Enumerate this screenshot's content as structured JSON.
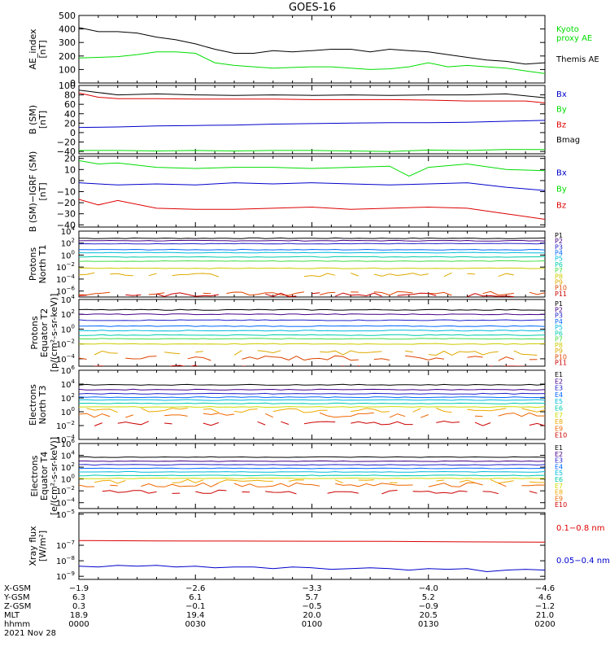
{
  "title": "GOES-16",
  "colors": {
    "black": "#000000",
    "green": "#00dd00",
    "blue": "#0000cc",
    "red": "#dd0000",
    "P": [
      "#000000",
      "#440088",
      "#2222cc",
      "#0066ff",
      "#00bbdd",
      "#00ccaa",
      "#44dd44",
      "#cccc00",
      "#ddaa00",
      "#dd4400",
      "#cc0000"
    ],
    "E": [
      "#000000",
      "#440088",
      "#2222cc",
      "#0066ff",
      "#00bbdd",
      "#00ccaa",
      "#ccdd00",
      "#eeaa00",
      "#ee6600",
      "#cc0000"
    ]
  },
  "chart_data": [
    {
      "type": "line",
      "panel": "ae",
      "ylabel": [
        "AE_index",
        "[nT]"
      ],
      "ylim": [
        0,
        500
      ],
      "yticks": [
        "0",
        "100",
        "200",
        "300",
        "400",
        "500"
      ],
      "series": [
        {
          "name": "Themis AE",
          "color": "black",
          "x": [
            0,
            10,
            20,
            30,
            40,
            50,
            60,
            70,
            80,
            90,
            100,
            110,
            120,
            130,
            140,
            150,
            160,
            170,
            180,
            190,
            200,
            210,
            220,
            230,
            240
          ],
          "y": [
            410,
            380,
            380,
            370,
            340,
            320,
            290,
            250,
            220,
            220,
            240,
            230,
            240,
            250,
            250,
            230,
            250,
            240,
            230,
            210,
            190,
            170,
            160,
            140,
            150
          ]
        },
        {
          "name": "Kyoto proxy AE",
          "color": "green",
          "x": [
            0,
            10,
            20,
            30,
            40,
            50,
            60,
            70,
            80,
            90,
            100,
            110,
            120,
            130,
            140,
            150,
            160,
            170,
            180,
            190,
            200,
            210,
            220,
            230,
            240
          ],
          "y": [
            185,
            190,
            195,
            210,
            230,
            230,
            220,
            150,
            130,
            120,
            110,
            115,
            120,
            120,
            110,
            100,
            105,
            120,
            150,
            120,
            130,
            120,
            110,
            90,
            70
          ]
        }
      ],
      "legend": [
        {
          "text": [
            "Kyoto",
            "proxy AE"
          ],
          "color": "green"
        },
        {
          "text": [
            "Themis AE"
          ],
          "color": "black"
        }
      ]
    },
    {
      "type": "line",
      "panel": "bsm",
      "ylabel": [
        "B (SM)",
        "[nT]"
      ],
      "ylim": [
        -45,
        100
      ],
      "yticks": [
        "−40",
        "−20",
        "0",
        "20",
        "40",
        "60",
        "80",
        "100"
      ],
      "ytick_values": [
        -40,
        -20,
        0,
        20,
        40,
        60,
        80,
        100
      ],
      "series": [
        {
          "name": "Bmag",
          "color": "black",
          "x": [
            0,
            10,
            20,
            40,
            60,
            80,
            100,
            120,
            140,
            160,
            180,
            200,
            220,
            230,
            240
          ],
          "y": [
            90,
            85,
            80,
            82,
            80,
            79,
            80,
            79,
            80,
            79,
            80,
            80,
            82,
            78,
            74
          ]
        },
        {
          "name": "Bz",
          "color": "red",
          "x": [
            0,
            10,
            20,
            40,
            60,
            80,
            100,
            120,
            140,
            160,
            180,
            200,
            220,
            230,
            240
          ],
          "y": [
            84,
            75,
            72,
            72,
            71,
            71,
            71,
            70,
            70,
            70,
            69,
            67,
            67,
            67,
            63
          ]
        },
        {
          "name": "Bx",
          "color": "blue",
          "x": [
            0,
            20,
            40,
            60,
            80,
            100,
            120,
            140,
            160,
            180,
            200,
            220,
            240
          ],
          "y": [
            11,
            12,
            14,
            15,
            16,
            18,
            19,
            20,
            21,
            21,
            22,
            24,
            26
          ]
        },
        {
          "name": "By",
          "color": "green",
          "x": [
            0,
            20,
            40,
            60,
            80,
            100,
            120,
            140,
            160,
            180,
            200,
            220,
            240
          ],
          "y": [
            -38,
            -38,
            -39,
            -38,
            -39,
            -38,
            -38,
            -39,
            -40,
            -37,
            -38,
            -36,
            -36
          ]
        }
      ],
      "legend": [
        {
          "text": [
            "Bx"
          ],
          "color": "blue"
        },
        {
          "text": [
            "By"
          ],
          "color": "green"
        },
        {
          "text": [
            "Bz"
          ],
          "color": "red"
        },
        {
          "text": [
            "Bmag"
          ],
          "color": "black"
        }
      ]
    },
    {
      "type": "line",
      "panel": "bigrf",
      "ylabel": [
        "B (SM)−IGRF (SM)",
        "[nT]"
      ],
      "ylim": [
        -42,
        22
      ],
      "yticks": [
        "−40",
        "−30",
        "−20",
        "−10",
        "0",
        "10",
        "20"
      ],
      "ytick_values": [
        -40,
        -30,
        -20,
        -10,
        0,
        10,
        20
      ],
      "series": [
        {
          "name": "Bx",
          "color": "green",
          "x": [
            0,
            10,
            20,
            40,
            60,
            80,
            100,
            120,
            140,
            160,
            170,
            180,
            200,
            220,
            240
          ],
          "y": [
            18,
            15,
            16,
            12,
            11,
            12,
            12,
            11,
            12,
            13,
            4,
            12,
            15,
            10,
            9
          ]
        },
        {
          "name": "By",
          "color": "blue",
          "x": [
            0,
            10,
            20,
            40,
            60,
            80,
            100,
            120,
            140,
            160,
            180,
            200,
            220,
            240
          ],
          "y": [
            -2,
            -3,
            -4,
            -3,
            -4,
            -2,
            -3,
            -2,
            -3,
            -4,
            -3,
            -2,
            -6,
            -9
          ]
        },
        {
          "name": "Bz",
          "color": "red",
          "x": [
            0,
            10,
            20,
            40,
            60,
            80,
            100,
            120,
            140,
            160,
            180,
            200,
            220,
            240
          ],
          "y": [
            -17,
            -22,
            -18,
            -25,
            -26,
            -26,
            -25,
            -24,
            -26,
            -25,
            -24,
            -25,
            -30,
            -35
          ]
        }
      ],
      "legend": [
        {
          "text": [
            "Bx"
          ],
          "color": "blue"
        },
        {
          "text": [
            "By"
          ],
          "color": "green"
        },
        {
          "text": [
            "Bz"
          ],
          "color": "red"
        }
      ]
    },
    {
      "type": "line",
      "panel": "prot1",
      "log": true,
      "ylabel": [
        "Protons",
        "North T1"
      ],
      "ylim_exp": [
        -7,
        4
      ],
      "yticks": [
        {
          "b": "10",
          "e": "4",
          "v": 4
        },
        {
          "b": "10",
          "e": "2",
          "v": 2
        },
        {
          "b": "10",
          "e": "0",
          "v": 0
        },
        {
          "b": "10",
          "e": "−2",
          "v": -2
        },
        {
          "b": "10",
          "e": "−4",
          "v": -4
        },
        {
          "b": "10",
          "e": "−6",
          "v": -6
        }
      ],
      "channels": [
        "P1",
        "P2",
        "P3",
        "P4",
        "P5",
        "P6",
        "P7",
        "P8",
        "P9",
        "P10",
        "P11"
      ],
      "levels": [
        2.8,
        2.4,
        1.9,
        0.9,
        0.4,
        -0.3,
        -1.0,
        -2.2,
        -3.3,
        -6.4,
        -6.6
      ]
    },
    {
      "type": "line",
      "panel": "prot2",
      "log": true,
      "ylabel": [
        "Protons",
        "Equator T2",
        "[p/(cm²-s-sr-keV)]"
      ],
      "ylim_exp": [
        -5,
        4
      ],
      "yticks": [
        {
          "b": "10",
          "e": "4",
          "v": 4
        },
        {
          "b": "10",
          "e": "2",
          "v": 2
        },
        {
          "b": "10",
          "e": "0",
          "v": 0
        },
        {
          "b": "10",
          "e": "−2",
          "v": -2
        },
        {
          "b": "10",
          "e": "−4",
          "v": -4
        }
      ],
      "channels": [
        "P1",
        "P2",
        "P3",
        "P4",
        "P5",
        "P6",
        "P7",
        "P8",
        "P9",
        "P10",
        "P11"
      ],
      "levels": [
        2.6,
        2.0,
        1.2,
        0.4,
        -0.2,
        -0.8,
        -1.3,
        -2.0,
        -3.2,
        -3.9,
        -5.2
      ]
    },
    {
      "type": "line",
      "panel": "elec3",
      "log": true,
      "ylabel": [
        "Electrons",
        "North T3"
      ],
      "ylim_exp": [
        -4,
        6
      ],
      "yticks": [
        {
          "b": "10",
          "e": "6",
          "v": 6
        },
        {
          "b": "10",
          "e": "4",
          "v": 4
        },
        {
          "b": "10",
          "e": "2",
          "v": 2
        },
        {
          "b": "10",
          "e": "0",
          "v": 0
        },
        {
          "b": "10",
          "e": "−2",
          "v": -2
        },
        {
          "b": "10",
          "e": "−4",
          "v": -4
        }
      ],
      "channels": [
        "E1",
        "E2",
        "E3",
        "E4",
        "E5",
        "E6",
        "E7",
        "E8",
        "E9",
        "E10"
      ],
      "levels": [
        3.9,
        3.2,
        2.6,
        2.1,
        1.7,
        1.2,
        0.7,
        0.2,
        -0.5,
        -1.7
      ]
    },
    {
      "type": "line",
      "panel": "elec4",
      "log": true,
      "ylabel": [
        "Electrons",
        "Equator T4",
        "[e/(cm²-s-sr-keV)]"
      ],
      "ylim_exp": [
        -5,
        6
      ],
      "yticks": [
        {
          "b": "10",
          "e": "6",
          "v": 6
        },
        {
          "b": "10",
          "e": "4",
          "v": 4
        },
        {
          "b": "10",
          "e": "2",
          "v": 2
        },
        {
          "b": "10",
          "e": "0",
          "v": 0
        },
        {
          "b": "10",
          "e": "−2",
          "v": -2
        },
        {
          "b": "10",
          "e": "−4",
          "v": -4
        }
      ],
      "channels": [
        "E1",
        "E2",
        "E3",
        "E4",
        "E5",
        "E6",
        "E7",
        "E8",
        "E9",
        "E10"
      ],
      "levels": [
        3.7,
        3.0,
        2.4,
        1.8,
        1.2,
        0.6,
        0.1,
        -0.4,
        -1.0,
        -2.2
      ]
    },
    {
      "type": "line",
      "panel": "xray",
      "log": true,
      "ylabel": [
        "Xray flux",
        "[W/m²]"
      ],
      "ylim_exp": [
        -9.2,
        -4.9
      ],
      "yticks": [
        {
          "b": "10",
          "e": "−5",
          "v": -5
        },
        {
          "b": "10",
          "e": "−7",
          "v": -7
        },
        {
          "b": "10",
          "e": "−8",
          "v": -8
        },
        {
          "b": "10",
          "e": "−9",
          "v": -9
        }
      ],
      "series": [
        {
          "name": "0.1−0.8 nm",
          "color": "red",
          "x": [
            0,
            40,
            80,
            120,
            160,
            200,
            240
          ],
          "y": [
            -6.7,
            -6.72,
            -6.73,
            -6.74,
            -6.75,
            -6.78,
            -6.8
          ]
        },
        {
          "name": "0.05−0.4 nm",
          "color": "blue",
          "x": [
            0,
            10,
            20,
            30,
            40,
            50,
            60,
            70,
            80,
            90,
            100,
            110,
            120,
            130,
            140,
            150,
            160,
            170,
            180,
            190,
            200,
            210,
            220,
            230,
            240
          ],
          "y": [
            -8.35,
            -8.4,
            -8.3,
            -8.35,
            -8.3,
            -8.4,
            -8.35,
            -8.45,
            -8.4,
            -8.4,
            -8.5,
            -8.4,
            -8.45,
            -8.55,
            -8.5,
            -8.45,
            -8.5,
            -8.6,
            -8.5,
            -8.55,
            -8.5,
            -8.7,
            -8.6,
            -8.55,
            -8.6
          ]
        }
      ],
      "legend": [
        {
          "text": [
            "0.1−0.8 nm"
          ],
          "color": "red"
        },
        {
          "text": [
            "0.05−0.4 nm"
          ],
          "color": "blue"
        }
      ]
    }
  ],
  "xaxis": {
    "xlim": [
      0,
      240
    ],
    "tick_x": [
      0,
      60,
      120,
      180,
      240
    ],
    "rows": [
      {
        "label": "X-GSM",
        "values": [
          "−1.9",
          "−2.6",
          "−3.3",
          "−4.0",
          "−4.6"
        ]
      },
      {
        "label": "Y-GSM",
        "values": [
          "6.3",
          "6.1",
          "5.7",
          "5.2",
          "4.6"
        ]
      },
      {
        "label": "Z-GSM",
        "values": [
          "0.3",
          "−0.1",
          "−0.5",
          "−0.9",
          "−1.2"
        ]
      },
      {
        "label": "MLT",
        "values": [
          "18.9",
          "19.4",
          "20.0",
          "20.5",
          "21.0"
        ]
      },
      {
        "label": "hhmm",
        "values": [
          "0000",
          "0030",
          "0100",
          "0130",
          "0200"
        ]
      }
    ],
    "date": "2021 Nov 28"
  }
}
